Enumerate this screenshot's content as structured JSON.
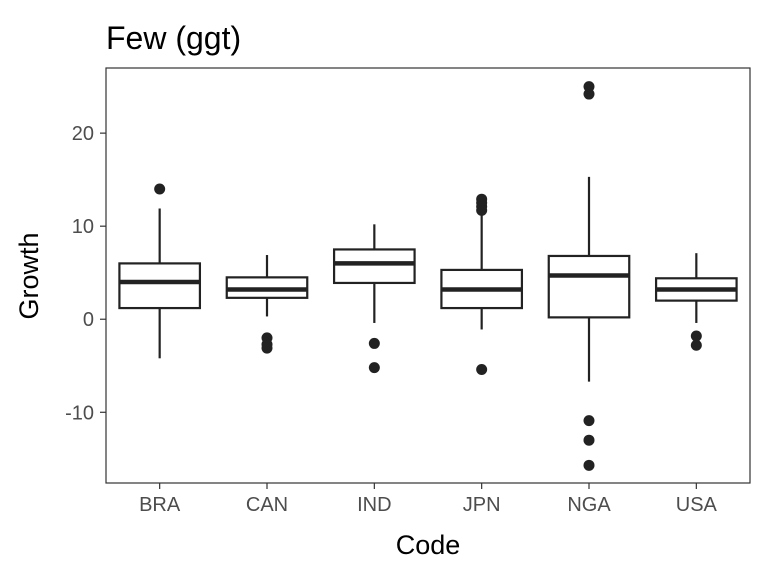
{
  "chart_data": {
    "type": "boxplot",
    "title": "Few (ggt)",
    "xlabel": "Code",
    "ylabel": "Growth",
    "ylim": [
      -17.6,
      27.0
    ],
    "yticks": [
      -10,
      0,
      10,
      20
    ],
    "ytick_labels": [
      "-10",
      "0",
      "10",
      "20"
    ],
    "grid": false,
    "categories": [
      "BRA",
      "CAN",
      "IND",
      "JPN",
      "NGA",
      "USA"
    ],
    "boxes": [
      {
        "category": "BRA",
        "lower_whisker": -4.2,
        "q1": 1.2,
        "median": 4.0,
        "q3": 6.0,
        "upper_whisker": 11.9,
        "outliers": [
          14.0
        ]
      },
      {
        "category": "CAN",
        "lower_whisker": 0.3,
        "q1": 2.3,
        "median": 3.2,
        "q3": 4.5,
        "upper_whisker": 6.9,
        "outliers": [
          -2.0,
          -2.7,
          -3.1
        ]
      },
      {
        "category": "IND",
        "lower_whisker": -0.4,
        "q1": 3.9,
        "median": 6.0,
        "q3": 7.5,
        "upper_whisker": 10.2,
        "outliers": [
          -2.6,
          -5.2
        ]
      },
      {
        "category": "JPN",
        "lower_whisker": -1.1,
        "q1": 1.2,
        "median": 3.2,
        "q3": 5.3,
        "upper_whisker": 11.2,
        "outliers": [
          12.9,
          12.5,
          12.1,
          11.7,
          -5.4
        ]
      },
      {
        "category": "NGA",
        "lower_whisker": -6.7,
        "q1": 0.2,
        "median": 4.7,
        "q3": 6.8,
        "upper_whisker": 15.3,
        "outliers": [
          25.0,
          24.2,
          -10.9,
          -13.0,
          -15.7
        ]
      },
      {
        "category": "USA",
        "lower_whisker": -0.4,
        "q1": 2.0,
        "median": 3.2,
        "q3": 4.4,
        "upper_whisker": 7.1,
        "outliers": [
          -1.8,
          -2.8
        ]
      }
    ],
    "colors": {
      "line": "#222222",
      "axis_text": "#4d4d4d",
      "panel_border": "#333333"
    }
  }
}
